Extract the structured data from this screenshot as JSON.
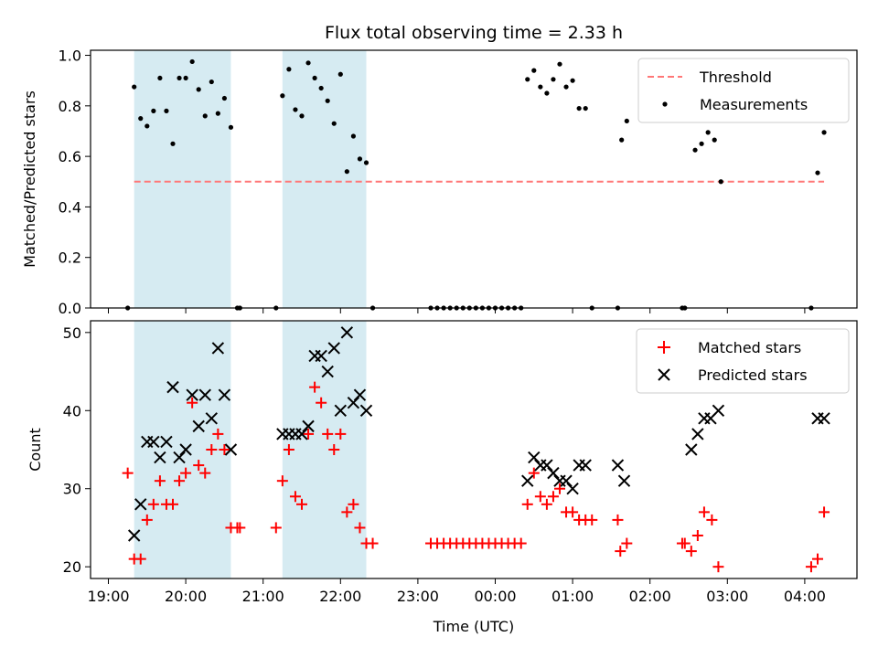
{
  "chart_data": [
    {
      "type": "scatter",
      "title": "Flux total observing time = 2.33 h",
      "ylabel": "Matched/Predicted stars",
      "xlabel": "",
      "xlim": [
        "19:00",
        "04:45"
      ],
      "ylim": [
        0,
        1.02
      ],
      "yticks": [
        "0.0",
        "0.2",
        "0.4",
        "0.6",
        "0.8",
        "1.0"
      ],
      "ytick_values": [
        0,
        0.2,
        0.4,
        0.6,
        0.8,
        1.0
      ],
      "xticks_hours": [
        0,
        1,
        2,
        3,
        4,
        5,
        6,
        7,
        8,
        9
      ],
      "shaded_intervals": [
        [
          "19:20",
          "20:35"
        ],
        [
          "21:15",
          "22:20"
        ]
      ],
      "legend_position": "top-right",
      "threshold": {
        "name": "Threshold",
        "value": 0.5,
        "x_range": [
          "19:20",
          "04:15"
        ],
        "color": "#ff7777"
      },
      "measurements": {
        "name": "Measurements",
        "color": "#000000",
        "points": [
          [
            "19:15",
            0.0
          ],
          [
            "19:20",
            0.875
          ],
          [
            "19:25",
            0.75
          ],
          [
            "19:30",
            0.72
          ],
          [
            "19:35",
            0.78
          ],
          [
            "19:40",
            0.91
          ],
          [
            "19:45",
            0.78
          ],
          [
            "19:50",
            0.65
          ],
          [
            "19:55",
            0.91
          ],
          [
            "20:00",
            0.91
          ],
          [
            "20:05",
            0.975
          ],
          [
            "20:10",
            0.865
          ],
          [
            "20:15",
            0.76
          ],
          [
            "20:20",
            0.895
          ],
          [
            "20:25",
            0.77
          ],
          [
            "20:30",
            0.83
          ],
          [
            "20:35",
            0.715
          ],
          [
            "20:40",
            0.0
          ],
          [
            "20:42",
            0.0
          ],
          [
            "21:10",
            0.0
          ],
          [
            "21:15",
            0.84
          ],
          [
            "21:20",
            0.945
          ],
          [
            "21:25",
            0.785
          ],
          [
            "21:30",
            0.76
          ],
          [
            "21:35",
            0.97
          ],
          [
            "21:40",
            0.91
          ],
          [
            "21:45",
            0.87
          ],
          [
            "21:50",
            0.82
          ],
          [
            "21:55",
            0.73
          ],
          [
            "22:00",
            0.925
          ],
          [
            "22:05",
            0.54
          ],
          [
            "22:10",
            0.68
          ],
          [
            "22:15",
            0.59
          ],
          [
            "22:20",
            0.575
          ],
          [
            "22:25",
            0.0
          ],
          [
            "23:10",
            0.0
          ],
          [
            "23:15",
            0.0
          ],
          [
            "23:20",
            0.0
          ],
          [
            "23:25",
            0.0
          ],
          [
            "23:30",
            0.0
          ],
          [
            "23:35",
            0.0
          ],
          [
            "23:40",
            0.0
          ],
          [
            "23:45",
            0.0
          ],
          [
            "23:50",
            0.0
          ],
          [
            "23:55",
            0.0
          ],
          [
            "00:00",
            0.0
          ],
          [
            "00:05",
            0.0
          ],
          [
            "00:10",
            0.0
          ],
          [
            "00:15",
            0.0
          ],
          [
            "00:20",
            0.0
          ],
          [
            "00:25",
            0.905
          ],
          [
            "00:30",
            0.94
          ],
          [
            "00:35",
            0.875
          ],
          [
            "00:40",
            0.85
          ],
          [
            "00:45",
            0.905
          ],
          [
            "00:50",
            0.965
          ],
          [
            "00:55",
            0.875
          ],
          [
            "01:00",
            0.9
          ],
          [
            "01:05",
            0.79
          ],
          [
            "01:10",
            0.79
          ],
          [
            "01:15",
            0.0
          ],
          [
            "01:35",
            0.0
          ],
          [
            "01:38",
            0.665
          ],
          [
            "01:42",
            0.74
          ],
          [
            "02:25",
            0.0
          ],
          [
            "02:27",
            0.0
          ],
          [
            "02:35",
            0.625
          ],
          [
            "02:40",
            0.65
          ],
          [
            "02:45",
            0.695
          ],
          [
            "02:50",
            0.665
          ],
          [
            "02:55",
            0.5
          ],
          [
            "04:05",
            0.0
          ],
          [
            "04:10",
            0.535
          ],
          [
            "04:15",
            0.695
          ]
        ]
      }
    },
    {
      "type": "scatter",
      "ylabel": "Count",
      "xlabel": "Time (UTC)",
      "xlim": [
        "19:00",
        "04:45"
      ],
      "ylim": [
        18.5,
        51.5
      ],
      "yticks": [
        "20",
        "30",
        "40",
        "50"
      ],
      "ytick_values": [
        20,
        30,
        40,
        50
      ],
      "xticks": [
        "19:00",
        "20:00",
        "21:00",
        "22:00",
        "23:00",
        "00:00",
        "01:00",
        "02:00",
        "03:00",
        "04:00"
      ],
      "xticks_hours": [
        0,
        1,
        2,
        3,
        4,
        5,
        6,
        7,
        8,
        9
      ],
      "shaded_intervals": [
        [
          "19:20",
          "20:35"
        ],
        [
          "21:15",
          "22:20"
        ]
      ],
      "legend_position": "top-right",
      "series": [
        {
          "name": "Matched stars",
          "marker": "plus",
          "color": "#ff0000",
          "points": [
            [
              "19:15",
              32
            ],
            [
              "19:20",
              21
            ],
            [
              "19:25",
              21
            ],
            [
              "19:30",
              26
            ],
            [
              "19:35",
              28
            ],
            [
              "19:40",
              31
            ],
            [
              "19:45",
              28
            ],
            [
              "19:50",
              28
            ],
            [
              "19:55",
              31
            ],
            [
              "20:00",
              32
            ],
            [
              "20:05",
              41
            ],
            [
              "20:10",
              33
            ],
            [
              "20:15",
              32
            ],
            [
              "20:20",
              35
            ],
            [
              "20:25",
              37
            ],
            [
              "20:30",
              35
            ],
            [
              "20:35",
              25
            ],
            [
              "20:40",
              25
            ],
            [
              "20:42",
              25
            ],
            [
              "21:10",
              25
            ],
            [
              "21:15",
              31
            ],
            [
              "21:20",
              35
            ],
            [
              "21:25",
              29
            ],
            [
              "21:30",
              28
            ],
            [
              "21:35",
              37
            ],
            [
              "21:40",
              43
            ],
            [
              "21:45",
              41
            ],
            [
              "21:50",
              37
            ],
            [
              "21:55",
              35
            ],
            [
              "22:00",
              37
            ],
            [
              "22:05",
              27
            ],
            [
              "22:10",
              28
            ],
            [
              "22:15",
              25
            ],
            [
              "22:20",
              23
            ],
            [
              "22:25",
              23
            ],
            [
              "23:10",
              23
            ],
            [
              "23:15",
              23
            ],
            [
              "23:20",
              23
            ],
            [
              "23:25",
              23
            ],
            [
              "23:30",
              23
            ],
            [
              "23:35",
              23
            ],
            [
              "23:40",
              23
            ],
            [
              "23:45",
              23
            ],
            [
              "23:50",
              23
            ],
            [
              "23:55",
              23
            ],
            [
              "00:00",
              23
            ],
            [
              "00:05",
              23
            ],
            [
              "00:10",
              23
            ],
            [
              "00:15",
              23
            ],
            [
              "00:20",
              23
            ],
            [
              "00:25",
              28
            ],
            [
              "00:30",
              32
            ],
            [
              "00:35",
              29
            ],
            [
              "00:40",
              28
            ],
            [
              "00:45",
              29
            ],
            [
              "00:50",
              30
            ],
            [
              "00:55",
              27
            ],
            [
              "01:00",
              27
            ],
            [
              "01:05",
              26
            ],
            [
              "01:10",
              26
            ],
            [
              "01:15",
              26
            ],
            [
              "01:35",
              26
            ],
            [
              "01:37",
              22
            ],
            [
              "01:42",
              23
            ],
            [
              "02:25",
              23
            ],
            [
              "02:27",
              23
            ],
            [
              "02:32",
              22
            ],
            [
              "02:37",
              24
            ],
            [
              "02:42",
              27
            ],
            [
              "02:48",
              26
            ],
            [
              "02:53",
              20
            ],
            [
              "04:05",
              20
            ],
            [
              "04:10",
              21
            ],
            [
              "04:15",
              27
            ]
          ]
        },
        {
          "name": "Predicted stars",
          "marker": "x",
          "color": "#000000",
          "points": [
            [
              "19:20",
              24
            ],
            [
              "19:25",
              28
            ],
            [
              "19:30",
              36
            ],
            [
              "19:35",
              36
            ],
            [
              "19:40",
              34
            ],
            [
              "19:45",
              36
            ],
            [
              "19:50",
              43
            ],
            [
              "19:55",
              34
            ],
            [
              "20:00",
              35
            ],
            [
              "20:05",
              42
            ],
            [
              "20:10",
              38
            ],
            [
              "20:15",
              42
            ],
            [
              "20:20",
              39
            ],
            [
              "20:25",
              48
            ],
            [
              "20:30",
              42
            ],
            [
              "20:35",
              35
            ],
            [
              "21:15",
              37
            ],
            [
              "21:20",
              37
            ],
            [
              "21:25",
              37
            ],
            [
              "21:30",
              37
            ],
            [
              "21:35",
              38
            ],
            [
              "21:40",
              47
            ],
            [
              "21:45",
              47
            ],
            [
              "21:50",
              45
            ],
            [
              "21:55",
              48
            ],
            [
              "22:00",
              40
            ],
            [
              "22:05",
              50
            ],
            [
              "22:10",
              41
            ],
            [
              "22:15",
              42
            ],
            [
              "22:20",
              40
            ],
            [
              "00:25",
              31
            ],
            [
              "00:30",
              34
            ],
            [
              "00:35",
              33
            ],
            [
              "00:40",
              33
            ],
            [
              "00:45",
              32
            ],
            [
              "00:50",
              31
            ],
            [
              "00:55",
              31
            ],
            [
              "01:00",
              30
            ],
            [
              "01:05",
              33
            ],
            [
              "01:10",
              33
            ],
            [
              "01:35",
              33
            ],
            [
              "01:40",
              31
            ],
            [
              "02:32",
              35
            ],
            [
              "02:37",
              37
            ],
            [
              "02:42",
              39
            ],
            [
              "02:47",
              39
            ],
            [
              "02:53",
              40
            ],
            [
              "04:10",
              39
            ],
            [
              "04:15",
              39
            ]
          ]
        }
      ]
    }
  ]
}
